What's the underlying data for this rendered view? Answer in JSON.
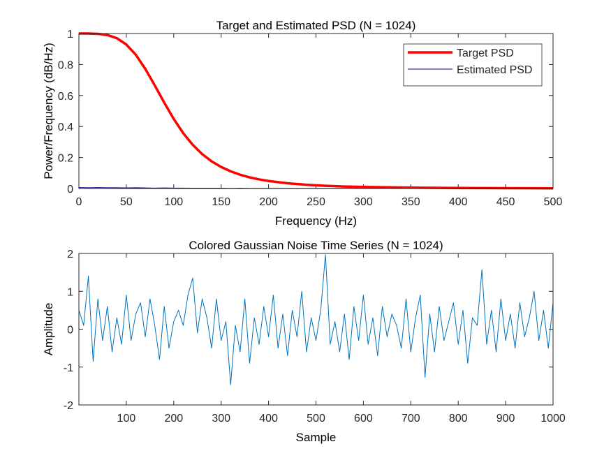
{
  "chart_data": [
    {
      "type": "line",
      "title": "Target and Estimated PSD (N = 1024)",
      "xlabel": "Frequency (Hz)",
      "ylabel": "Power/Frequency (dB/Hz)",
      "x": [
        0,
        10,
        20,
        30,
        40,
        50,
        60,
        70,
        80,
        90,
        100,
        110,
        120,
        130,
        140,
        150,
        160,
        170,
        180,
        190,
        200,
        220,
        240,
        260,
        280,
        300,
        350,
        400,
        450,
        500
      ],
      "series": [
        {
          "name": "Target PSD",
          "color": "#ff0000",
          "line_width": 3.5,
          "values": [
            1,
            0.9999,
            0.998,
            0.99,
            0.97,
            0.929,
            0.863,
            0.772,
            0.665,
            0.554,
            0.449,
            0.357,
            0.282,
            0.222,
            0.175,
            0.139,
            0.111,
            0.0889,
            0.072,
            0.0588,
            0.0484,
            0.0336,
            0.024,
            0.0175,
            0.0131,
            0.01,
            0.0054,
            0.0032,
            0.002,
            0.0013
          ]
        },
        {
          "name": "Estimated PSD",
          "color": "#00008b",
          "line_width": 1,
          "values": [
            0.006,
            0.005,
            0.006,
            0.005,
            0.005,
            0.004,
            0.005,
            0.004,
            0.003,
            0.004,
            0.003,
            0.003,
            0.002,
            0.002,
            0.002,
            0.002,
            0.001,
            0.002,
            0.001,
            0.001,
            0.001,
            0.001,
            0.001,
            0.001,
            0.001,
            0.001,
            0.001,
            0.001,
            0.001,
            0.001
          ]
        }
      ],
      "xlim": [
        0,
        500
      ],
      "xticks": [
        0,
        50,
        100,
        150,
        200,
        250,
        300,
        350,
        400,
        450,
        500
      ],
      "ylim": [
        0,
        1
      ],
      "yticks": [
        0,
        0.2,
        0.4,
        0.6,
        0.8,
        1
      ],
      "legend": "northeast"
    },
    {
      "type": "line",
      "title": "Colored Gaussian Noise Time Series (N = 1024)",
      "xlabel": "Sample",
      "ylabel": "Amplitude",
      "x": [
        0,
        10,
        20,
        30,
        40,
        50,
        60,
        70,
        80,
        90,
        100,
        110,
        120,
        130,
        140,
        150,
        160,
        170,
        180,
        190,
        200,
        210,
        220,
        230,
        240,
        250,
        260,
        270,
        280,
        290,
        300,
        310,
        320,
        330,
        340,
        350,
        360,
        370,
        380,
        390,
        400,
        410,
        420,
        430,
        440,
        450,
        460,
        470,
        480,
        490,
        500,
        510,
        520,
        530,
        540,
        550,
        560,
        570,
        580,
        590,
        600,
        610,
        620,
        630,
        640,
        650,
        660,
        670,
        680,
        690,
        700,
        710,
        720,
        730,
        740,
        750,
        760,
        770,
        780,
        790,
        800,
        810,
        820,
        830,
        840,
        850,
        860,
        870,
        880,
        890,
        900,
        910,
        920,
        930,
        940,
        950,
        960,
        970,
        980,
        990,
        1000
      ],
      "series": [
        {
          "color": "#0072bd",
          "line_width": 1,
          "values": [
            0.5,
            0.1,
            1.4,
            -0.85,
            0.8,
            -0.3,
            0.6,
            -0.6,
            0.3,
            -0.4,
            0.9,
            -0.3,
            0.4,
            0.7,
            -0.2,
            0.8,
            0.1,
            -0.8,
            0.6,
            -0.5,
            0.2,
            0.5,
            0.1,
            0.9,
            1.35,
            -0.1,
            0.8,
            0.3,
            -0.5,
            0.8,
            -0.3,
            0.2,
            -1.47,
            0.1,
            -0.6,
            0.8,
            -0.9,
            0.3,
            -0.4,
            0.6,
            -0.2,
            0.9,
            -0.5,
            0.4,
            -0.7,
            0.5,
            -0.2,
            1.0,
            -0.6,
            0.3,
            -0.3,
            0.5,
            1.97,
            -0.4,
            0.2,
            -0.6,
            0.4,
            -0.8,
            0.6,
            -0.3,
            0.9,
            -0.4,
            0.3,
            -0.7,
            0.6,
            -0.2,
            0.4,
            0.1,
            -0.5,
            0.8,
            -0.6,
            0.3,
            0.9,
            -1.27,
            0.4,
            -0.6,
            0.6,
            -0.3,
            0.2,
            0.7,
            -0.4,
            0.5,
            -0.9,
            0.3,
            0.1,
            1.57,
            -0.4,
            0.5,
            -0.6,
            0.8,
            -0.3,
            0.4,
            -0.5,
            0.7,
            -0.2,
            0.3,
            1.0,
            -0.3,
            0.5,
            -0.5,
            0.7
          ]
        }
      ],
      "xlim": [
        0,
        1000
      ],
      "xticks": [
        100,
        200,
        300,
        400,
        500,
        600,
        700,
        800,
        900,
        1000
      ],
      "ylim": [
        -2,
        2
      ],
      "yticks": [
        -2,
        -1,
        0,
        1,
        2
      ]
    }
  ]
}
